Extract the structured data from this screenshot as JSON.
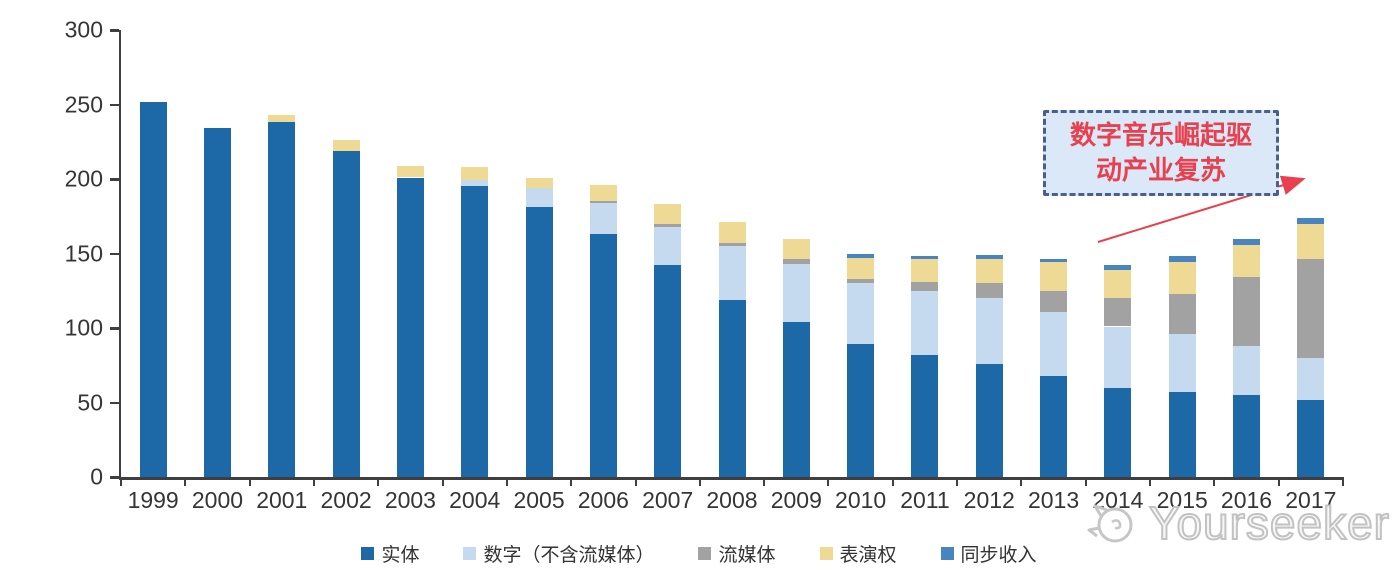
{
  "chart_data": {
    "type": "bar",
    "stacked": true,
    "title": "",
    "xlabel": "",
    "ylabel": "",
    "x": [
      "1999",
      "2000",
      "2001",
      "2002",
      "2003",
      "2004",
      "2005",
      "2006",
      "2007",
      "2008",
      "2009",
      "2010",
      "2011",
      "2012",
      "2013",
      "2014",
      "2015",
      "2016",
      "2017"
    ],
    "series": [
      {
        "name": "实体",
        "color": "#1d69a7",
        "values": [
          252,
          234,
          238,
          219,
          201,
          195,
          181,
          163,
          142,
          119,
          104,
          89,
          82,
          76,
          68,
          60,
          57,
          55,
          52
        ]
      },
      {
        "name": "数字（不含流媒体）",
        "color": "#c5daef",
        "values": [
          0,
          0,
          0,
          0,
          0,
          4,
          13,
          21,
          26,
          36,
          39,
          41,
          43,
          44,
          43,
          41,
          39,
          33,
          28
        ]
      },
      {
        "name": "流媒体",
        "color": "#a2a2a2",
        "values": [
          0,
          0,
          0,
          0,
          0,
          0,
          0,
          1,
          2,
          2,
          3,
          3,
          6,
          10,
          14,
          19,
          27,
          46,
          66
        ]
      },
      {
        "name": "表演权",
        "color": "#eed995",
        "values": [
          0,
          0,
          5,
          7,
          8,
          9,
          7,
          11,
          13,
          14,
          14,
          14,
          15,
          16,
          19,
          19,
          21,
          22,
          24
        ]
      },
      {
        "name": "同步收入",
        "color": "#4784c0",
        "values": [
          0,
          0,
          0,
          0,
          0,
          0,
          0,
          0,
          0,
          0,
          0,
          3,
          2,
          3,
          2,
          3,
          4,
          4,
          4
        ]
      }
    ],
    "ylim": [
      0,
      300
    ],
    "yticks": [
      0,
      50,
      100,
      150,
      200,
      250,
      300
    ],
    "grid": false,
    "legend_position": "bottom"
  },
  "annotation": {
    "line1": "数字音乐崛起驱",
    "line2": "动产业复苏",
    "text_color": "#e8404e",
    "box_fill": "#dbe8f7",
    "box_border": "#4a5e8f",
    "arrow_color": "#e8404e"
  },
  "watermark": {
    "text": "Yourseeker",
    "icon": "yourseeker-logo",
    "color": "#c2c2c2"
  }
}
